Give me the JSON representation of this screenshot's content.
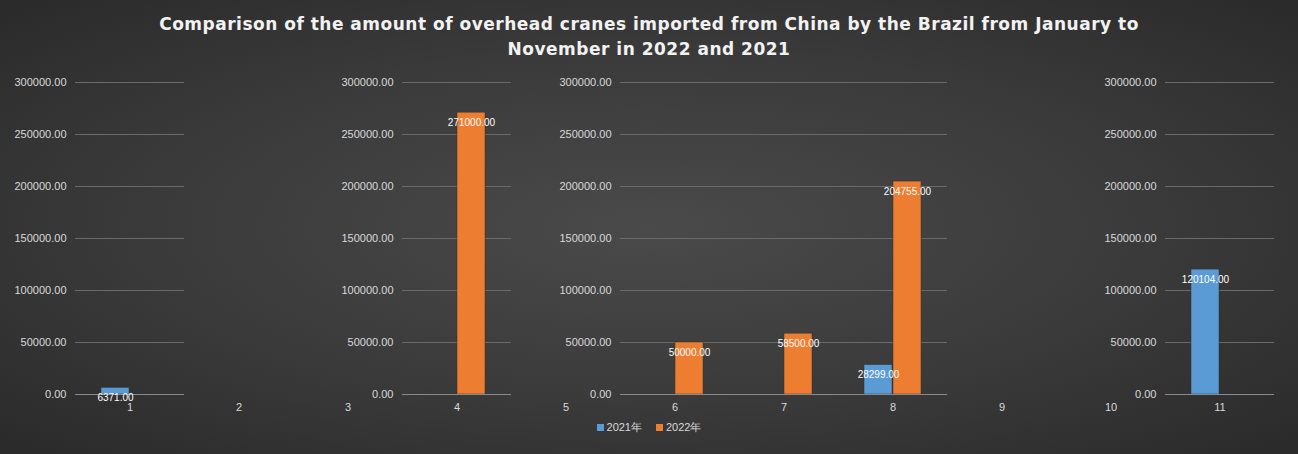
{
  "chart_data": {
    "type": "bar",
    "title": "Comparison of the amount of overhead cranes imported from China by the Brazil from January to November in 2022 and 2021",
    "categories": [
      1,
      2,
      3,
      4,
      5,
      6,
      7,
      8,
      9,
      10,
      11
    ],
    "series": [
      {
        "name": "2021年",
        "color": "#5b9bd5",
        "values": [
          6371,
          null,
          null,
          null,
          null,
          null,
          null,
          28299,
          null,
          null,
          120104
        ],
        "value_labels": [
          "6371.00",
          null,
          null,
          null,
          null,
          null,
          null,
          "28299.00",
          null,
          null,
          "120104.00"
        ]
      },
      {
        "name": "2022年",
        "color": "#ed7d31",
        "values": [
          null,
          null,
          null,
          271000,
          null,
          50000,
          58500,
          204755,
          null,
          null,
          null
        ],
        "value_labels": [
          null,
          null,
          null,
          "271000.00",
          null,
          "50000.00",
          "58500.00",
          "204755.00",
          null,
          null,
          null
        ]
      }
    ],
    "ylim": [
      0,
      300000
    ],
    "yticks": [
      {
        "value": 0,
        "label": "0.00"
      },
      {
        "value": 50000,
        "label": "50000.00"
      },
      {
        "value": 100000,
        "label": "100000.00"
      },
      {
        "value": 150000,
        "label": "150000.00"
      },
      {
        "value": 200000,
        "label": "200000.00"
      },
      {
        "value": 250000,
        "label": "250000.00"
      },
      {
        "value": 300000,
        "label": "300000.00"
      }
    ],
    "grid": true,
    "data_labels": true,
    "legend": "bottom"
  }
}
